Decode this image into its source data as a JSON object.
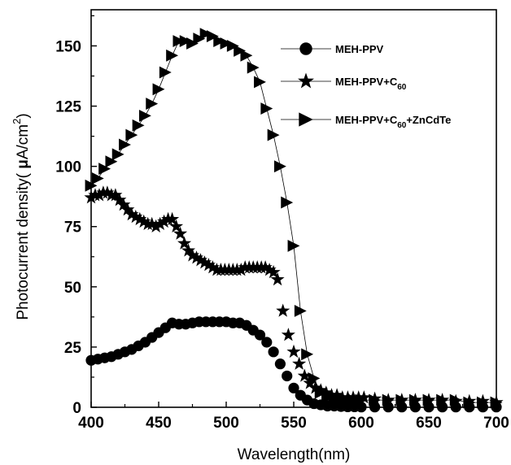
{
  "chart_data": {
    "type": "scatter",
    "xlabel": "Wavelength(nm)",
    "ylabel_parts": {
      "main": "Photocurrent density( ",
      "mu": "μ",
      "unit": "A/cm",
      "sup": "2",
      "close": ")"
    },
    "xlim": [
      400,
      700
    ],
    "ylim": [
      0,
      165
    ],
    "xticks": [
      "400",
      "450",
      "500",
      "550",
      "600",
      "650",
      "700"
    ],
    "yticks": [
      "0",
      "25",
      "50",
      "75",
      "100",
      "125",
      "150"
    ],
    "grid": false,
    "legend_position": "top-right",
    "series": [
      {
        "name": "MEH-PPV",
        "legend_parts": {
          "main": "MEH-PPV"
        },
        "marker": "circle",
        "connected": false,
        "x": [
          400,
          405,
          410,
          415,
          420,
          425,
          430,
          435,
          440,
          445,
          450,
          455,
          460,
          465,
          470,
          475,
          480,
          485,
          490,
          495,
          500,
          505,
          510,
          515,
          520,
          525,
          530,
          535,
          540,
          545,
          550,
          555,
          560,
          565,
          570,
          575,
          580,
          585,
          590,
          595,
          600,
          610,
          620,
          630,
          640,
          650,
          660,
          670,
          680,
          690,
          700
        ],
        "y": [
          19.5,
          20,
          20.5,
          21,
          22,
          23,
          24,
          25.5,
          27,
          29,
          31,
          33,
          35,
          34.5,
          34.5,
          35,
          35.5,
          35.5,
          35.5,
          35.5,
          35.5,
          35,
          35,
          34,
          32,
          30,
          27,
          23,
          18,
          13,
          8,
          5,
          3,
          1.5,
          1,
          0.5,
          0.5,
          0.3,
          0.2,
          0.2,
          0.1,
          0.1,
          0.1,
          0.1,
          0.1,
          0.1,
          0.1,
          0.1,
          0.1,
          0.1,
          0.1
        ]
      },
      {
        "name": "MEH-PPV+C60",
        "legend_parts": {
          "main": "MEH-PPV+C",
          "sub": "60"
        },
        "marker": "star",
        "connected": false,
        "x": [
          400,
          403,
          406,
          409,
          412,
          415,
          418,
          421,
          424,
          427,
          430,
          433,
          436,
          439,
          442,
          445,
          448,
          451,
          454,
          457,
          460,
          463,
          466,
          469,
          472,
          475,
          478,
          481,
          484,
          487,
          490,
          493,
          496,
          499,
          502,
          505,
          508,
          511,
          514,
          517,
          520,
          523,
          526,
          529,
          532,
          535,
          538,
          542,
          546,
          550,
          554,
          558,
          562,
          566,
          570,
          574,
          578,
          582,
          586,
          590,
          594,
          598,
          602,
          610,
          620,
          630,
          640,
          650,
          660,
          670,
          680,
          690,
          700
        ],
        "y": [
          87,
          88,
          88,
          89,
          89,
          88,
          88,
          86,
          84,
          82,
          80,
          79,
          78,
          77,
          76,
          76,
          75,
          76,
          77,
          78,
          78,
          75,
          72,
          68,
          65,
          63,
          62,
          61,
          60,
          59,
          58,
          57,
          57,
          57,
          57,
          57,
          57,
          57,
          58,
          58,
          58,
          58,
          58,
          58,
          57,
          56,
          53,
          40,
          30,
          23,
          18,
          13,
          10,
          8,
          7,
          6,
          5,
          5,
          4,
          4,
          4,
          4,
          4,
          3.5,
          3,
          3,
          3,
          3,
          3,
          2.5,
          2.5,
          2.5,
          2
        ]
      },
      {
        "name": "MEH-PPV+C60+ZnCdTe",
        "legend_parts": {
          "main": "MEH-PPV+C",
          "sub": "60",
          "tail": "+ZnCdTe"
        },
        "marker": "triangle-right",
        "connected": true,
        "x": [
          400,
          405,
          410,
          415,
          420,
          425,
          430,
          435,
          440,
          445,
          450,
          455,
          460,
          465,
          470,
          475,
          480,
          485,
          490,
          495,
          500,
          505,
          510,
          515,
          520,
          525,
          530,
          535,
          540,
          545,
          550,
          555,
          560,
          565,
          570,
          575,
          580,
          585,
          590,
          595,
          600,
          610,
          620,
          630,
          640,
          650,
          660,
          670,
          680,
          690,
          700
        ],
        "y": [
          92,
          95,
          99,
          102,
          105,
          109,
          113,
          117,
          121,
          126,
          132,
          139,
          146,
          152,
          152,
          151,
          153,
          155,
          154,
          152,
          151,
          150,
          148,
          146,
          141,
          135,
          124,
          113,
          100,
          85,
          67,
          40,
          22,
          12,
          6,
          4,
          3,
          3,
          3,
          3,
          3,
          3,
          3,
          3,
          3,
          3,
          3,
          3,
          2,
          2,
          2
        ]
      }
    ]
  }
}
